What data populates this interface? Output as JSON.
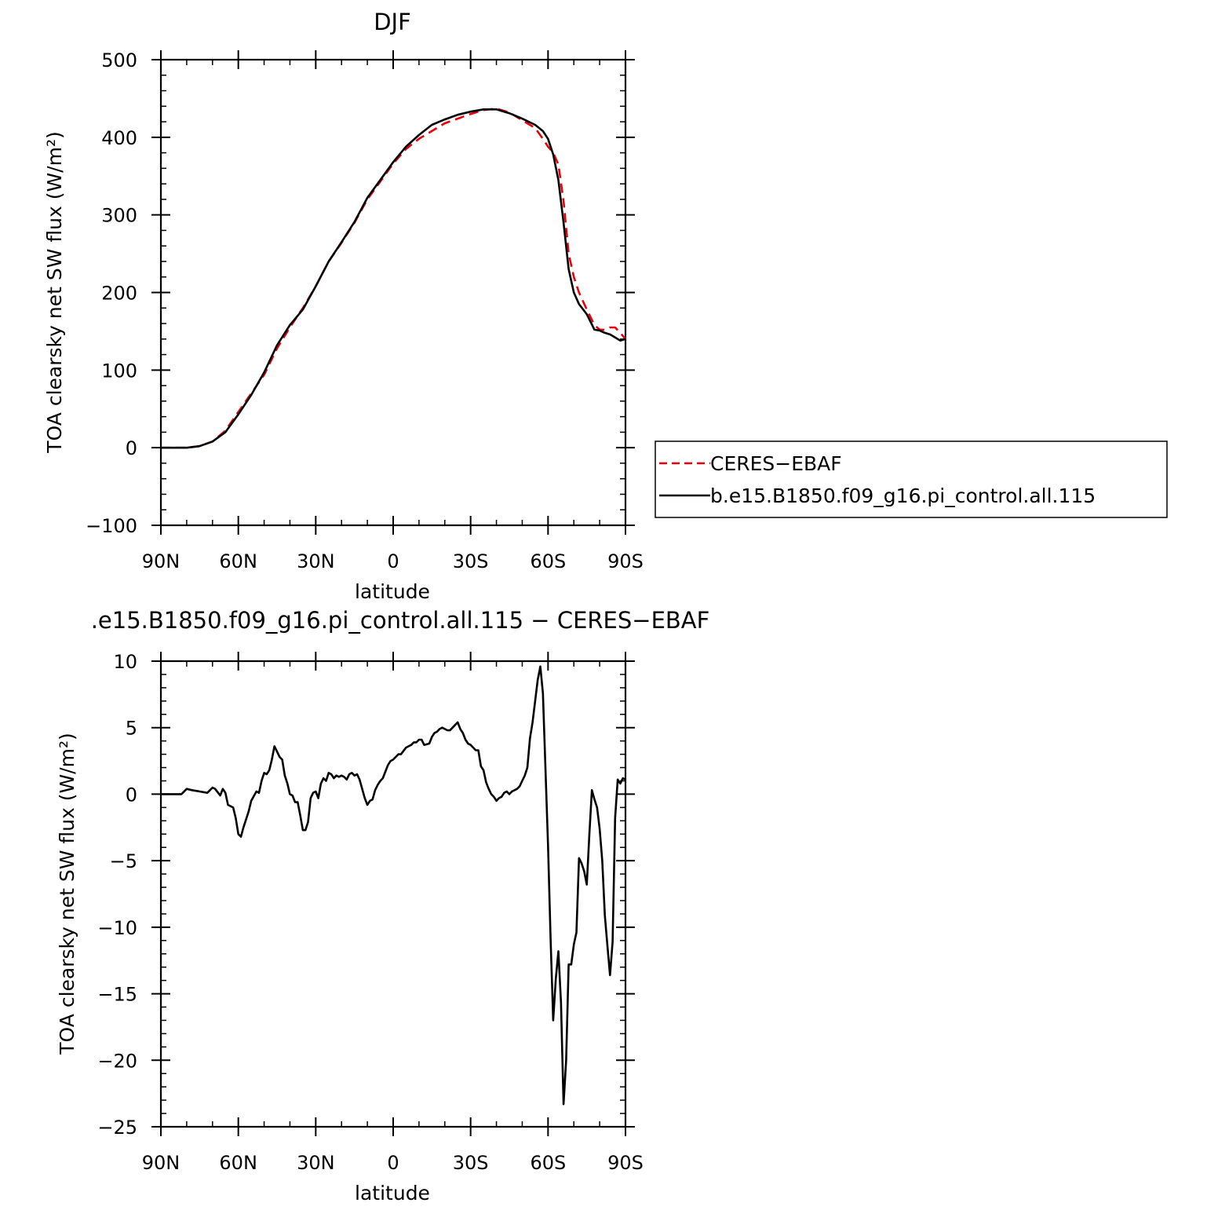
{
  "chart_data": [
    {
      "type": "line",
      "title": "DJF",
      "xlabel": "latitude",
      "ylabel": "TOA clearsky net SW flux (W/m²)",
      "xlim": [
        90,
        -90
      ],
      "ylim": [
        -100,
        500
      ],
      "yticks": [
        -100,
        0,
        100,
        200,
        300,
        400,
        500
      ],
      "xticks": [
        {
          "value": 90,
          "label": "90N"
        },
        {
          "value": 60,
          "label": "60N"
        },
        {
          "value": 30,
          "label": "30N"
        },
        {
          "value": 0,
          "label": "0"
        },
        {
          "value": -30,
          "label": "30S"
        },
        {
          "value": -60,
          "label": "60S"
        },
        {
          "value": -90,
          "label": "90S"
        }
      ],
      "legend": {
        "position": "right",
        "entries": [
          "CERES−EBAF",
          "b.e15.B1850.f09_g16.pi_control.all.115"
        ]
      },
      "series": [
        {
          "name": "CERES−EBAF",
          "color": "#e8000b",
          "dash": "dashed",
          "x": [
            90,
            85,
            80,
            75,
            70,
            65,
            60,
            55,
            50,
            45,
            40,
            35,
            30,
            25,
            20,
            15,
            10,
            5,
            0,
            -5,
            -10,
            -15,
            -20,
            -25,
            -30,
            -35,
            -40,
            -45,
            -50,
            -55,
            -58,
            -60,
            -62,
            -64,
            -66,
            -68,
            -70,
            -72,
            -75,
            -78,
            -80,
            -82,
            -84,
            -86,
            -88,
            -90
          ],
          "y": [
            0,
            0,
            0,
            2,
            8,
            22,
            46,
            70,
            94,
            128,
            155,
            180,
            208,
            240,
            264,
            290,
            320,
            343,
            366,
            385,
            398,
            408,
            418,
            424,
            430,
            435,
            437,
            432,
            422,
            412,
            398,
            388,
            380,
            365,
            318,
            250,
            220,
            200,
            178,
            158,
            152,
            152,
            155,
            155,
            148,
            140
          ]
        },
        {
          "name": "b.e15.B1850.f09_g16.pi_control.all.115",
          "color": "#000000",
          "dash": "solid",
          "x": [
            90,
            85,
            80,
            75,
            70,
            65,
            60,
            55,
            50,
            45,
            40,
            35,
            30,
            25,
            20,
            15,
            10,
            5,
            0,
            -5,
            -10,
            -15,
            -20,
            -25,
            -30,
            -35,
            -40,
            -45,
            -50,
            -55,
            -58,
            -60,
            -62,
            -64,
            -66,
            -68,
            -70,
            -72,
            -75,
            -78,
            -80,
            -82,
            -84,
            -86,
            -88,
            -90
          ],
          "y": [
            0,
            0,
            0,
            2,
            8,
            20,
            43,
            68,
            97,
            132,
            158,
            178,
            208,
            240,
            265,
            291,
            322,
            345,
            368,
            388,
            403,
            416,
            423,
            429,
            433,
            436,
            436,
            431,
            424,
            416,
            408,
            398,
            378,
            345,
            290,
            230,
            200,
            185,
            172,
            152,
            151,
            148,
            146,
            142,
            138,
            140
          ]
        }
      ]
    },
    {
      "type": "line",
      "title": ".e15.B1850.f09_g16.pi_control.all.115 − CERES−EBAF",
      "xlabel": "latitude",
      "ylabel": "TOA clearsky net SW flux (W/m²)",
      "xlim": [
        90,
        -90
      ],
      "ylim": [
        -25,
        10
      ],
      "yticks": [
        -25,
        -20,
        -15,
        -10,
        -5,
        0,
        5,
        10
      ],
      "xticks": [
        {
          "value": 90,
          "label": "90N"
        },
        {
          "value": 60,
          "label": "60N"
        },
        {
          "value": 30,
          "label": "30N"
        },
        {
          "value": 0,
          "label": "0"
        },
        {
          "value": -30,
          "label": "30S"
        },
        {
          "value": -60,
          "label": "60S"
        },
        {
          "value": -90,
          "label": "90S"
        }
      ],
      "series": [
        {
          "color": "#000000",
          "dash": "solid",
          "x": [
            90,
            82,
            80,
            78,
            72,
            70,
            69,
            67,
            66,
            65,
            64,
            62,
            61,
            60,
            59,
            58,
            56,
            55,
            53,
            52,
            51,
            50,
            49,
            48,
            47,
            46,
            45,
            44,
            43,
            42,
            41,
            40,
            39,
            38,
            37,
            36,
            35,
            34,
            33,
            32,
            31,
            30,
            29,
            28,
            27,
            26,
            25,
            24,
            23,
            22,
            21,
            20,
            19,
            18,
            17,
            16,
            15,
            14,
            13,
            12,
            11,
            10,
            9,
            8,
            7,
            6,
            5,
            4,
            3,
            2,
            1,
            0,
            -2,
            -3,
            -5,
            -6,
            -7,
            -8,
            -9,
            -10,
            -11,
            -12,
            -14,
            -15,
            -16,
            -17,
            -18,
            -19,
            -20,
            -21,
            -22,
            -23,
            -24,
            -25,
            -26,
            -27,
            -28,
            -29,
            -30,
            -31,
            -32,
            -33,
            -34,
            -35,
            -36,
            -37,
            -38,
            -39,
            -40,
            -41,
            -42,
            -43,
            -44,
            -45,
            -46,
            -47,
            -48,
            -49,
            -50,
            -51,
            -52,
            -53,
            -54,
            -55,
            -56,
            -57,
            -58,
            -59,
            -60,
            -61,
            -62,
            -63,
            -64,
            -65,
            -66,
            -67,
            -68,
            -69,
            -70,
            -71,
            -72,
            -73,
            -74,
            -75,
            -76,
            -77,
            -78,
            -79,
            -80,
            -81,
            -82,
            -83,
            -84,
            -85,
            -86,
            -87,
            -88,
            -89,
            -90
          ],
          "y": [
            0,
            0,
            0.4,
            0.3,
            0.1,
            0.5,
            0.4,
            -0.1,
            0.4,
            0.1,
            -0.8,
            -1.0,
            -1.8,
            -3.0,
            -3.2,
            -2.5,
            -1.3,
            -0.5,
            0.2,
            0.1,
            1.0,
            1.6,
            1.5,
            1.8,
            2.6,
            3.6,
            3.2,
            2.8,
            2.6,
            1.4,
            0.8,
            0.0,
            -0.1,
            -0.6,
            -0.6,
            -1.6,
            -2.7,
            -2.7,
            -2.1,
            -0.3,
            0.1,
            0.2,
            -0.3,
            0.8,
            1.2,
            1.0,
            1.6,
            1.5,
            1.2,
            1.4,
            1.3,
            1.4,
            1.3,
            1.1,
            1.5,
            1.6,
            1.4,
            1.5,
            1.1,
            0.4,
            -0.3,
            -0.8,
            -0.5,
            -0.4,
            0.3,
            0.7,
            1.0,
            1.2,
            1.7,
            2.2,
            2.5,
            2.6,
            3.0,
            3.0,
            3.5,
            3.6,
            3.7,
            3.9,
            3.9,
            4.1,
            4.1,
            3.7,
            3.8,
            4.3,
            4.6,
            4.7,
            4.9,
            5.0,
            4.9,
            4.8,
            4.8,
            5.0,
            5.2,
            5.4,
            4.9,
            4.6,
            4.1,
            3.8,
            3.7,
            3.5,
            3.3,
            3.3,
            2.1,
            1.8,
            0.9,
            0.4,
            0.0,
            -0.2,
            -0.5,
            -0.3,
            -0.2,
            0.1,
            0.2,
            0.0,
            0.2,
            0.3,
            0.4,
            0.6,
            1.0,
            1.4,
            2.0,
            4.2,
            5.4,
            7.0,
            8.6,
            9.6,
            7.6,
            2.0,
            -3.8,
            -10.9,
            -17.0,
            -13.9,
            -11.8,
            -15.6,
            -23.3,
            -20.0,
            -12.8,
            -12.8,
            -11.3,
            -10.4,
            -4.8,
            -5.2,
            -5.8,
            -6.8,
            -3.0,
            0.3,
            -0.4,
            -1.0,
            -2.6,
            -5.0,
            -9.1,
            -11.4,
            -13.6,
            -11.1,
            -1.8,
            1.1,
            0.8,
            1.2,
            1.1
          ]
        }
      ]
    }
  ]
}
